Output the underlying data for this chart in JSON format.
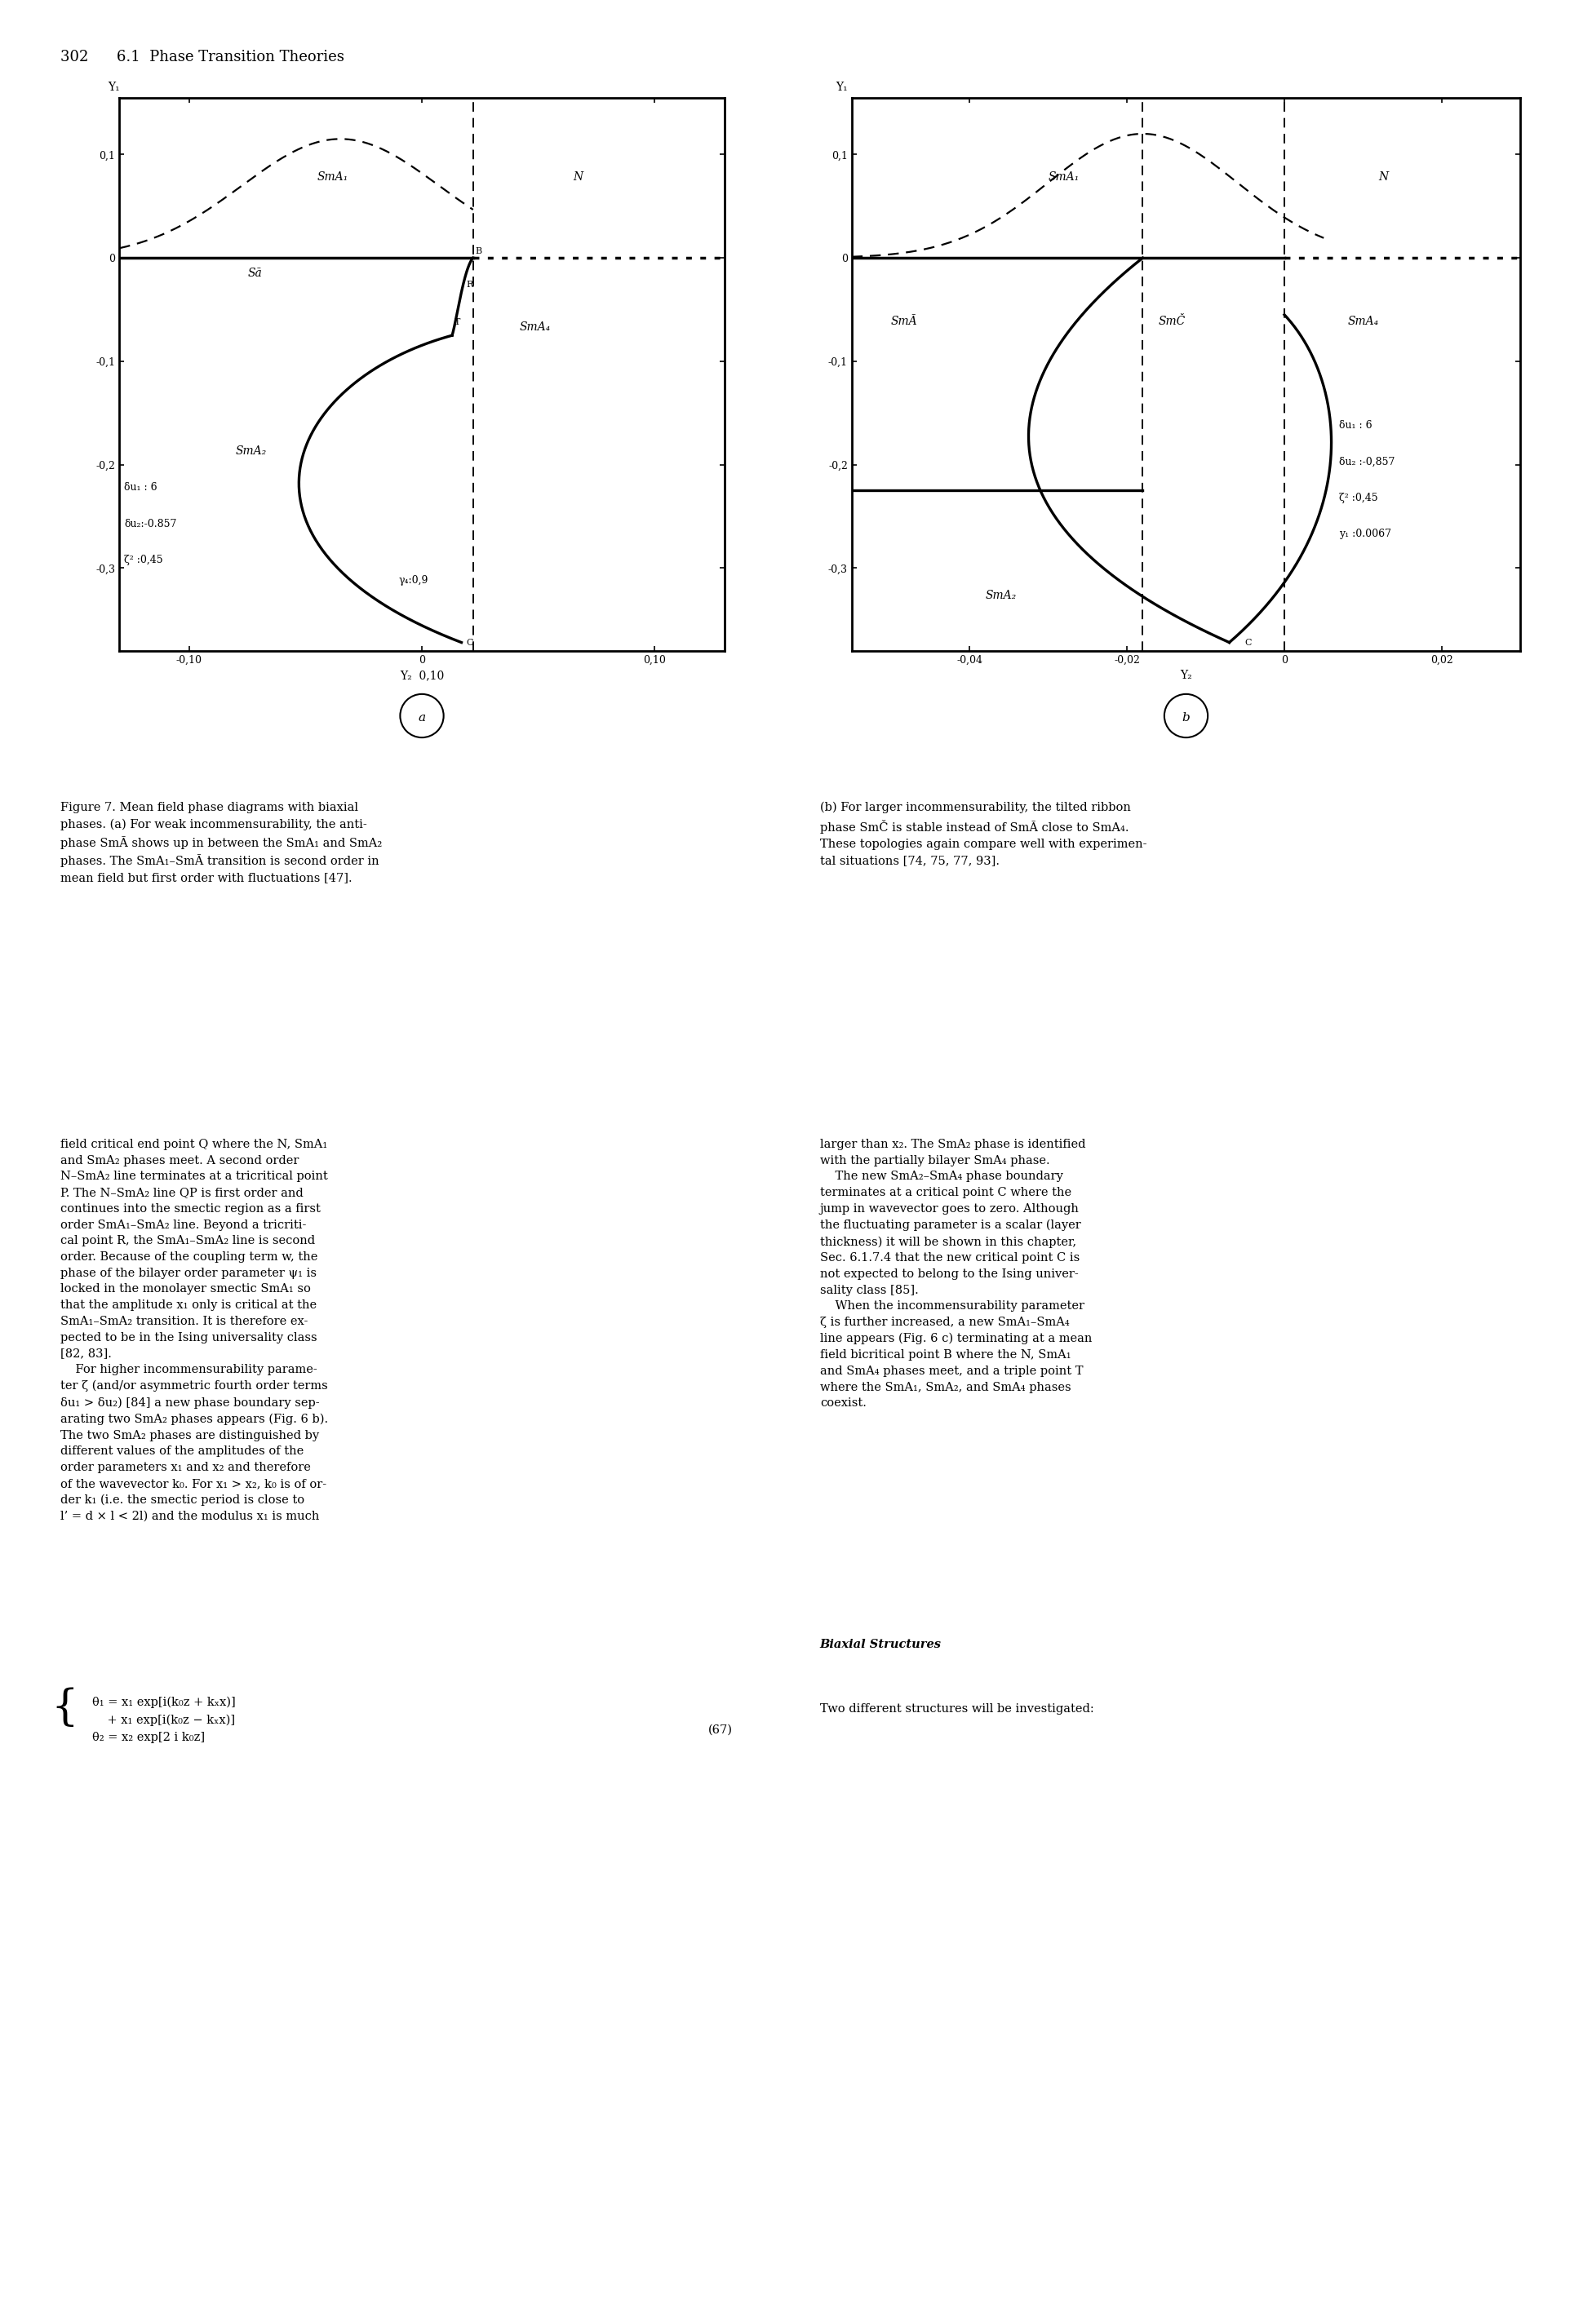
{
  "fig_width": 19.51,
  "fig_height": 28.49,
  "background": "#ffffff",
  "header": "302      6.1  Phase Transition Theories",
  "plot_a": {
    "xlim": [
      -0.13,
      0.13
    ],
    "ylim": [
      -0.38,
      0.155
    ],
    "xticks": [
      -0.1,
      0.0,
      0.1
    ],
    "xtick_labels": [
      "-0,10",
      "0",
      "0,10"
    ],
    "yticks": [
      0.1,
      0.0,
      -0.1,
      -0.2,
      -0.3
    ],
    "ytick_labels": [
      "0,1",
      "0",
      "-0,1",
      "-0,2",
      "-0,3"
    ]
  },
  "plot_b": {
    "xlim": [
      -0.055,
      0.03
    ],
    "ylim": [
      -0.38,
      0.155
    ],
    "xticks": [
      -0.04,
      -0.02,
      0.0,
      0.02
    ],
    "xtick_labels": [
      "-0,04",
      "-0,02",
      "0",
      "0,02"
    ],
    "yticks": [
      0.1,
      0.0,
      -0.1,
      -0.2,
      -0.3
    ],
    "ytick_labels": [
      "0,1",
      "0",
      "-0,1",
      "-0,2",
      "-0,3"
    ]
  },
  "caption_left": "Figure 7. Mean field phase diagrams with biaxial\nphases. (a) For weak incommensurability, the anti-\nphase SmĀ shows up in between the SmA₁ and SmA₂\nphases. The SmA₁–SmĀ transition is second order in\nmean field but first order with fluctuations [47].",
  "caption_right": "(b) For larger incommensurability, the tilted ribbon\nphase SmČ is stable instead of SmĀ close to SmA₄.\nThese topologies again compare well with experimen-\ntal situations [74, 75, 77, 93].",
  "body_left": "field critical end point Q where the N, SmA₁\nand SmA₂ phases meet. A second order\nN–SmA₂ line terminates at a tricritical point\nP. The N–SmA₂ line QP is first order and\ncontinues into the smectic region as a first\norder SmA₁–SmA₂ line. Beyond a tricriti-\ncal point R, the SmA₁–SmA₂ line is second\norder. Because of the coupling term w, the\nphase of the bilayer order parameter ψ₁ is\nlocked in the monolayer smectic SmA₁ so\nthat the amplitude x₁ only is critical at the\nSmA₁–SmA₂ transition. It is therefore ex-\npected to be in the Ising universality class\n[82, 83].\n    For higher incommensurability parame-\nter ζ (and/or asymmetric fourth order terms\nδu₁ > δu₂) [84] a new phase boundary sep-\narating two SmA₂ phases appears (Fig. 6 b).\nThe two SmA₂ phases are distinguished by\ndifferent values of the amplitudes of the\norder parameters x₁ and x₂ and therefore\nof the wavevector k₀. For x₁ > x₂, k₀ is of or-\nder k₁ (i.e. the smectic period is close to\nl’ = d × l < 2l) and the modulus x₁ is much",
  "body_right": "larger than x₂. The SmA₂ phase is identified\nwith the partially bilayer SmA₄ phase.\n    The new SmA₂–SmA₄ phase boundary\nterminates at a critical point C where the\njump in wavevector goes to zero. Although\nthe fluctuating parameter is a scalar (layer\nthickness) it will be shown in this chapter,\nSec. 6.1.7.4 that the new critical point C is\nnot expected to belong to the Ising univer-\nsality class [85].\n    When the incommensurability parameter\nζ is further increased, a new SmA₁–SmA₄\nline appears (Fig. 6 c) terminating at a mean\nfield bicritical point B where the N, SmA₁\nand SmA₄ phases meet, and a triple point T\nwhere the SmA₁, SmA₂, and SmA₄ phases\ncoexist.",
  "biaxial_heading": "Biaxial Structures",
  "biaxial_intro": "Two different structures will be investigated:",
  "eq_line1": "θ₁ = x₁ exp[i(k₀z + kₓx)]",
  "eq_line2": "    + x₁ exp[i(k₀z − kₓx)]",
  "eq_line3": "θ₂ = x₂ exp[2 i k₀z]",
  "eq_number": "(67)"
}
